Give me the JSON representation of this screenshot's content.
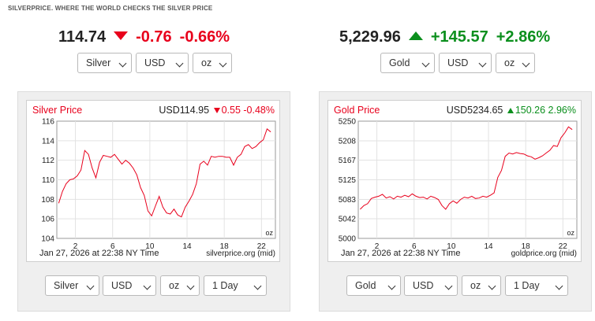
{
  "brand": "SILVERPRICE. WHERE THE WORLD CHECKS THE SILVER PRICE",
  "silver": {
    "price": "114.74",
    "change": "-0.76",
    "change_pct": "-0.66%",
    "direction": "down",
    "selects": {
      "metal": "Silver",
      "currency": "USD",
      "unit": "oz"
    },
    "chart": {
      "title": "Silver Price",
      "current": "USD114.95",
      "change": "0.55",
      "change_pct": "-0.48%",
      "unit_label": "oz",
      "timestamp": "Jan 27, 2026 at 22:38 NY Time",
      "source": "silverprice.org (mid)"
    },
    "controls": {
      "metal": "Silver",
      "currency": "USD",
      "unit": "oz",
      "range": "1 Day"
    }
  },
  "gold": {
    "price": "5,229.96",
    "change": "+145.57",
    "change_pct": "+2.86%",
    "direction": "up",
    "selects": {
      "metal": "Gold",
      "currency": "USD",
      "unit": "oz"
    },
    "chart": {
      "title": "Gold Price",
      "current": "USD5234.65",
      "change": "150.26",
      "change_pct": "2.96%",
      "unit_label": "oz",
      "timestamp": "Jan 27, 2026 at 22:38 NY Time",
      "source": "goldprice.org (mid)"
    },
    "controls": {
      "metal": "Gold",
      "currency": "USD",
      "unit": "oz",
      "range": "1 Day"
    }
  },
  "colors": {
    "up": "#0b8f1d",
    "down": "#e8001c",
    "line": "#e8001c"
  },
  "chart_data": [
    {
      "type": "line",
      "title": "Silver Price",
      "x_ticks": [
        "2",
        "6",
        "10",
        "14",
        "18",
        "22"
      ],
      "y_ticks": [
        "104",
        "106",
        "108",
        "110",
        "112",
        "114",
        "116"
      ],
      "xlim": [
        0,
        23.5
      ],
      "ylim": [
        104,
        116
      ],
      "grid": true,
      "series": [
        {
          "x": [
            0.2,
            0.6,
            1,
            1.4,
            1.8,
            2.2,
            2.6,
            3,
            3.4,
            3.8,
            4.2,
            4.6,
            5,
            5.4,
            5.8,
            6.2,
            6.6,
            7,
            7.4,
            7.8,
            8.2,
            8.6,
            9,
            9.4,
            9.8,
            10.2,
            10.6,
            11,
            11.4,
            11.8,
            12.2,
            12.6,
            13,
            13.4,
            13.8,
            14.2,
            14.6,
            15,
            15.4,
            15.8,
            16.2,
            16.6,
            17,
            17.4,
            17.8,
            18.2,
            18.6,
            19,
            19.4,
            19.8,
            20.2,
            20.6,
            21,
            21.4,
            21.8,
            22.2,
            22.6,
            23
          ],
          "y": [
            107.6,
            108.8,
            109.6,
            110.0,
            110.1,
            110.4,
            111.0,
            113.0,
            112.6,
            111.2,
            110.2,
            111.8,
            112.5,
            112.4,
            112.3,
            112.6,
            112.1,
            111.6,
            112.0,
            111.7,
            111.2,
            110.5,
            109.2,
            108.4,
            106.8,
            106.3,
            107.3,
            108.3,
            107.2,
            106.6,
            106.5,
            107.0,
            106.4,
            106.2,
            107.2,
            107.8,
            108.5,
            109.6,
            111.6,
            111.9,
            111.5,
            112.4,
            112.3,
            112.4,
            112.4,
            112.3,
            112.3,
            111.5,
            112.3,
            112.6,
            113.4,
            113.6,
            113.2,
            113.4,
            113.8,
            114.1,
            115.2,
            114.9
          ]
        }
      ]
    },
    {
      "type": "line",
      "title": "Gold Price",
      "x_ticks": [
        "2",
        "6",
        "10",
        "14",
        "18",
        "22"
      ],
      "y_ticks": [
        "5000",
        "5042",
        "5083",
        "5125",
        "5167",
        "5208",
        "5250"
      ],
      "xlim": [
        0,
        23.5
      ],
      "ylim": [
        5000,
        5250
      ],
      "grid": true,
      "series": [
        {
          "x": [
            0.2,
            0.6,
            1,
            1.4,
            1.8,
            2.2,
            2.6,
            3,
            3.4,
            3.8,
            4.2,
            4.6,
            5,
            5.4,
            5.8,
            6.2,
            6.6,
            7,
            7.4,
            7.8,
            8.2,
            8.6,
            9,
            9.4,
            9.8,
            10.2,
            10.6,
            11,
            11.4,
            11.8,
            12.2,
            12.6,
            13,
            13.4,
            13.8,
            14.2,
            14.6,
            15,
            15.4,
            15.8,
            16.2,
            16.6,
            17,
            17.4,
            17.8,
            18.2,
            18.6,
            19,
            19.4,
            19.8,
            20.2,
            20.6,
            21,
            21.4,
            21.8,
            22.2,
            22.6,
            23
          ],
          "y": [
            5062,
            5070,
            5074,
            5085,
            5088,
            5090,
            5094,
            5086,
            5089,
            5084,
            5090,
            5088,
            5092,
            5089,
            5095,
            5090,
            5087,
            5088,
            5084,
            5090,
            5087,
            5083,
            5070,
            5062,
            5074,
            5080,
            5075,
            5083,
            5088,
            5086,
            5090,
            5085,
            5086,
            5090,
            5088,
            5092,
            5097,
            5130,
            5145,
            5175,
            5182,
            5180,
            5183,
            5181,
            5180,
            5176,
            5174,
            5169,
            5172,
            5176,
            5182,
            5188,
            5198,
            5196,
            5215,
            5225,
            5238,
            5232
          ]
        }
      ]
    }
  ]
}
